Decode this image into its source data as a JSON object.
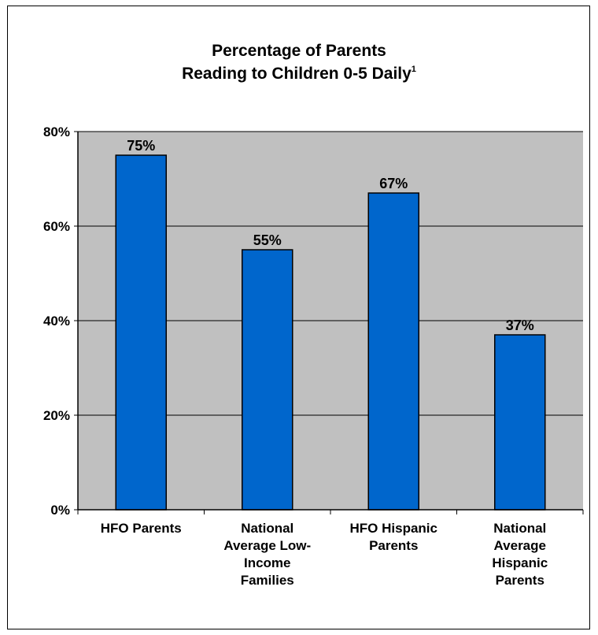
{
  "chart_data": {
    "type": "bar",
    "title_line1": "Percentage of Parents",
    "title_line2": "Reading to Children 0-5 Daily",
    "title_superscript": "1",
    "categories": [
      [
        "HFO Parents"
      ],
      [
        "National",
        "Average Low-",
        "Income",
        "Families"
      ],
      [
        "HFO Hispanic",
        "Parents"
      ],
      [
        "National",
        "Average",
        "Hispanic",
        "Parents"
      ]
    ],
    "values": [
      75,
      55,
      67,
      37
    ],
    "data_labels": [
      "75%",
      "55%",
      "67%",
      "37%"
    ],
    "ylim": [
      0,
      80
    ],
    "yticks": [
      0,
      20,
      40,
      60,
      80
    ],
    "ytick_labels": [
      "0%",
      "20%",
      "40%",
      "60%",
      "80%"
    ],
    "grid": true,
    "colors": {
      "bar": "#0066cc",
      "bar_stroke": "#000000",
      "plot_bg": "#c0c0c0",
      "gridline": "#000000"
    }
  }
}
